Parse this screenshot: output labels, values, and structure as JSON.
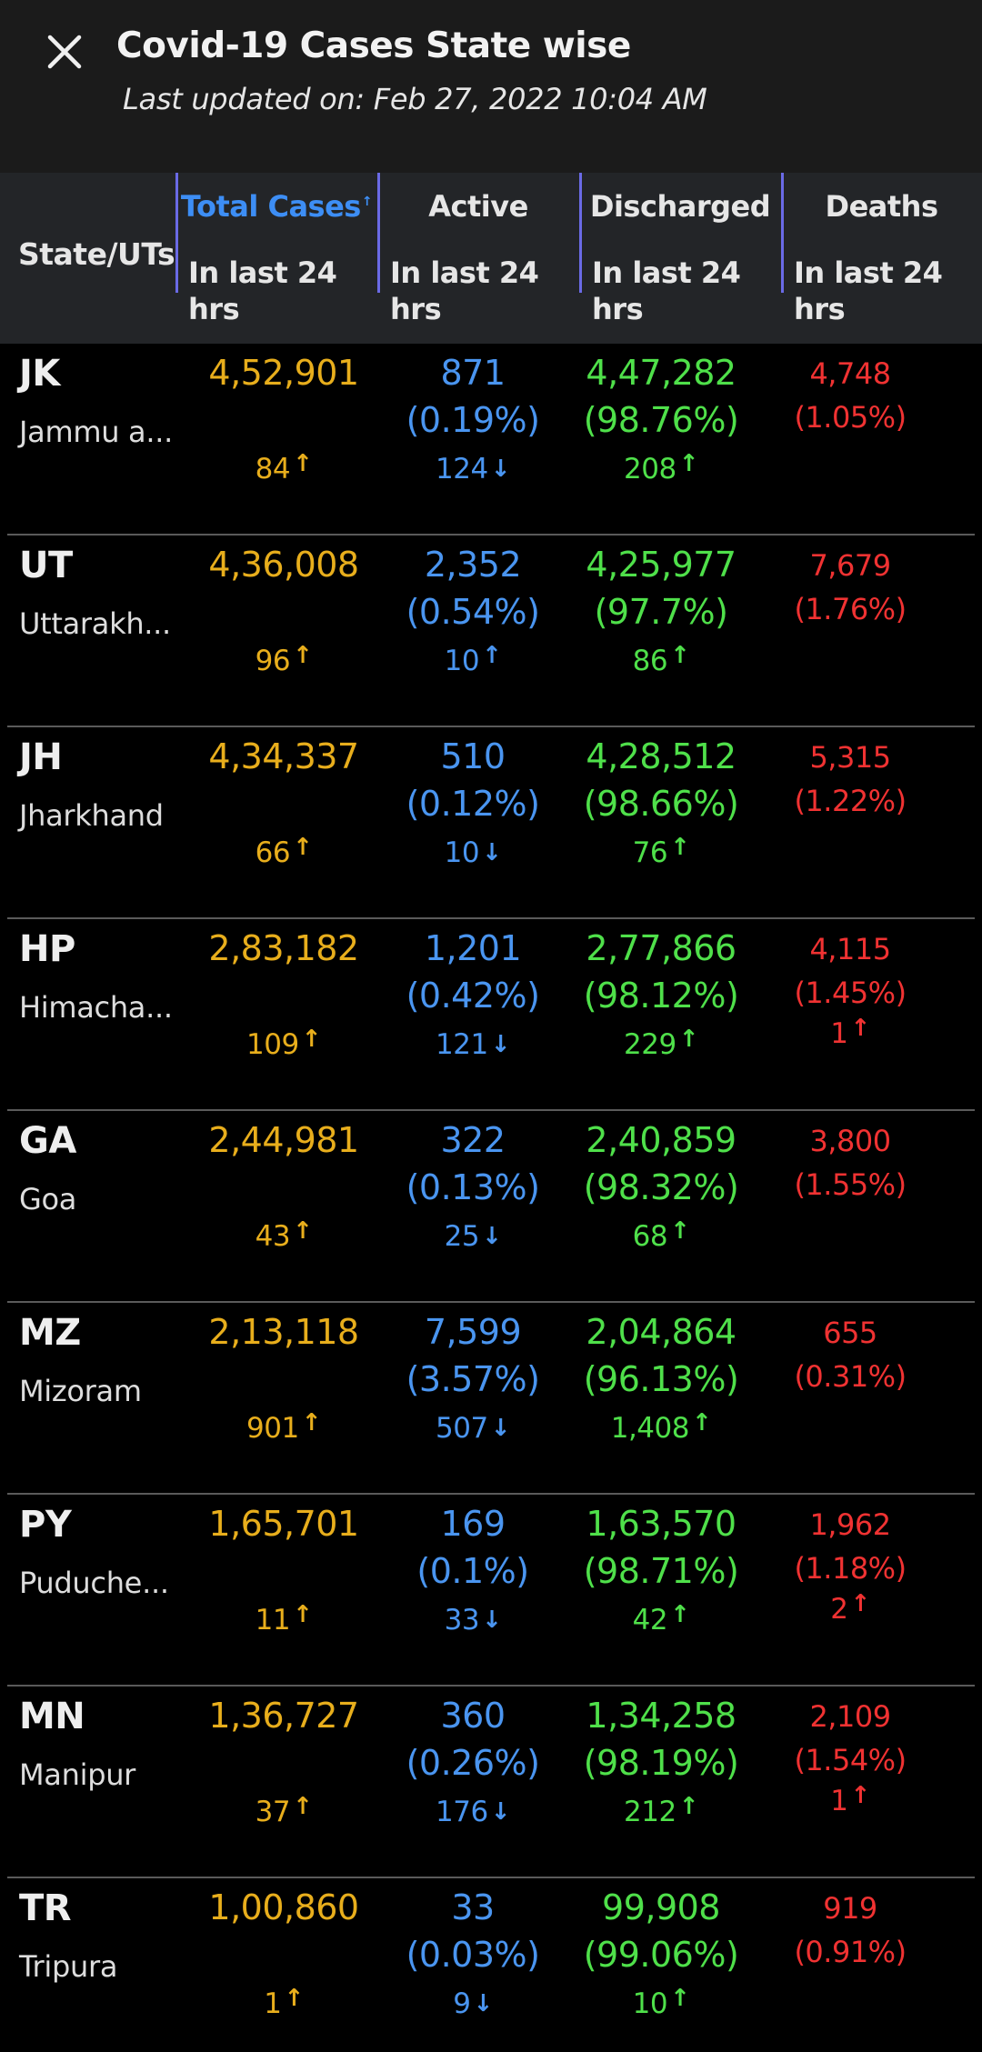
{
  "header": {
    "title": "Covid-19 Cases State wise",
    "last_updated": "Last updated on: Feb 27, 2022 10:04 AM"
  },
  "table": {
    "state_header": "State/UTs",
    "columns": [
      {
        "label": "Total Cases",
        "sub": "In last 24 hrs",
        "sort": "↑"
      },
      {
        "label": "Active",
        "sub": "In last 24 hrs"
      },
      {
        "label": "Discharged",
        "sub": "In last 24 hrs"
      },
      {
        "label": "Deaths",
        "sub": "In last 24 hrs"
      }
    ],
    "rows": [
      {
        "code": "JK",
        "name": "Jammu a...",
        "total": "4,52,901",
        "total_delta": "84",
        "active": "871",
        "active_pct": "(0.19%)",
        "active_delta": "124",
        "disc": "4,47,282",
        "disc_pct": "(98.76%)",
        "disc_delta": "208",
        "deaths": "4,748",
        "deaths_pct": "(1.05%)",
        "deaths_delta": ""
      },
      {
        "code": "UT",
        "name": "Uttarakh...",
        "total": "4,36,008",
        "total_delta": "96",
        "active": "2,352",
        "active_pct": "(0.54%)",
        "active_delta": "10",
        "disc": "4,25,977",
        "disc_pct": "(97.7%)",
        "disc_delta": "86",
        "deaths": "7,679",
        "deaths_pct": "(1.76%)",
        "deaths_delta": ""
      },
      {
        "code": "JH",
        "name": "Jharkhand",
        "total": "4,34,337",
        "total_delta": "66",
        "active": "510",
        "active_pct": "(0.12%)",
        "active_delta": "10",
        "disc": "4,28,512",
        "disc_pct": "(98.66%)",
        "disc_delta": "76",
        "deaths": "5,315",
        "deaths_pct": "(1.22%)",
        "deaths_delta": ""
      },
      {
        "code": "HP",
        "name": "Himacha...",
        "total": "2,83,182",
        "total_delta": "109",
        "active": "1,201",
        "active_pct": "(0.42%)",
        "active_delta": "121",
        "disc": "2,77,866",
        "disc_pct": "(98.12%)",
        "disc_delta": "229",
        "deaths": "4,115",
        "deaths_pct": "(1.45%)",
        "deaths_delta": "1"
      },
      {
        "code": "GA",
        "name": "Goa",
        "total": "2,44,981",
        "total_delta": "43",
        "active": "322",
        "active_pct": "(0.13%)",
        "active_delta": "25",
        "disc": "2,40,859",
        "disc_pct": "(98.32%)",
        "disc_delta": "68",
        "deaths": "3,800",
        "deaths_pct": "(1.55%)",
        "deaths_delta": ""
      },
      {
        "code": "MZ",
        "name": "Mizoram",
        "total": "2,13,118",
        "total_delta": "901",
        "active": "7,599",
        "active_pct": "(3.57%)",
        "active_delta": "507",
        "disc": "2,04,864",
        "disc_pct": "(96.13%)",
        "disc_delta": "1,408",
        "deaths": "655",
        "deaths_pct": "(0.31%)",
        "deaths_delta": ""
      },
      {
        "code": "PY",
        "name": "Puduche...",
        "total": "1,65,701",
        "total_delta": "11",
        "active": "169",
        "active_pct": "(0.1%)",
        "active_delta": "33",
        "disc": "1,63,570",
        "disc_pct": "(98.71%)",
        "disc_delta": "42",
        "deaths": "1,962",
        "deaths_pct": "(1.18%)",
        "deaths_delta": "2"
      },
      {
        "code": "MN",
        "name": "Manipur",
        "total": "1,36,727",
        "total_delta": "37",
        "active": "360",
        "active_pct": "(0.26%)",
        "active_delta": "176",
        "disc": "1,34,258",
        "disc_pct": "(98.19%)",
        "disc_delta": "212",
        "deaths": "2,109",
        "deaths_pct": "(1.54%)",
        "deaths_delta": "1"
      },
      {
        "code": "TR",
        "name": "Tripura",
        "total": "1,00,860",
        "total_delta": "1",
        "active": "33",
        "active_pct": "(0.03%)",
        "active_delta": "9",
        "disc": "99,908",
        "disc_pct": "(99.06%)",
        "disc_delta": "10",
        "deaths": "919",
        "deaths_pct": "(0.91%)",
        "deaths_delta": ""
      }
    ]
  },
  "arrows": {
    "up": "↑",
    "down": "↓"
  },
  "icons": {
    "close": "close-icon",
    "arrow_up": "arrow-up-icon",
    "arrow_down": "arrow-down-icon"
  },
  "colors": {
    "total": "#e8ae1c",
    "active": "#4a95f0",
    "discharged": "#4fe04a",
    "deaths": "#f03232",
    "header_active": "#3d8ef5"
  }
}
